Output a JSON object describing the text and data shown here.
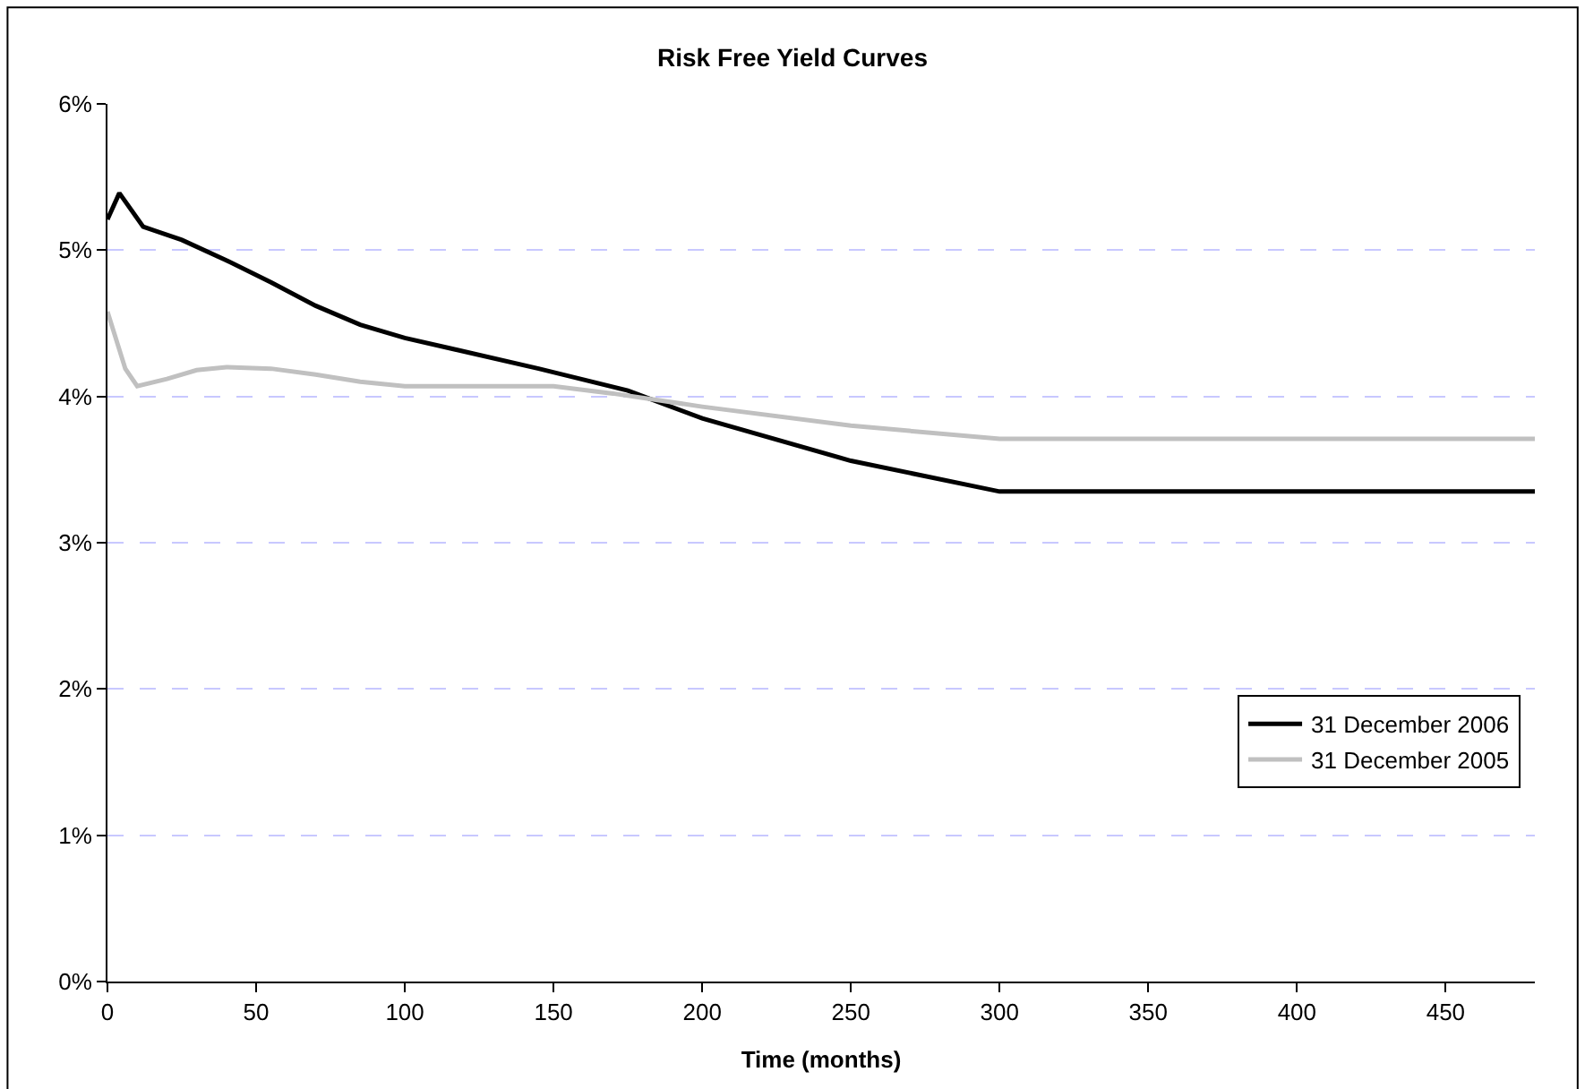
{
  "chart_data": {
    "type": "line",
    "title": "Risk Free Yield Curves",
    "xlabel": "Time (months)",
    "xlim": [
      0,
      480
    ],
    "xticks": [
      0,
      50,
      100,
      150,
      200,
      250,
      300,
      350,
      400,
      450
    ],
    "ylim": [
      0,
      0.06
    ],
    "yticks": [
      {
        "value": 0,
        "label": "0%"
      },
      {
        "value": 0.01,
        "label": "1%"
      },
      {
        "value": 0.02,
        "label": "2%"
      },
      {
        "value": 0.03,
        "label": "3%"
      },
      {
        "value": 0.04,
        "label": "4%"
      },
      {
        "value": 0.05,
        "label": "5%"
      },
      {
        "value": 0.06,
        "label": "6%"
      }
    ],
    "grid": "y",
    "legend": "bottom right",
    "marker": "none",
    "line_style": "solid",
    "series": [
      {
        "name": "31 December 2006",
        "color": "#000000",
        "x": [
          0,
          4,
          12,
          25,
          40,
          55,
          70,
          85,
          100,
          115,
          145,
          175,
          200,
          250,
          300,
          480
        ],
        "values": [
          0.0521,
          0.0539,
          0.0516,
          0.0507,
          0.0493,
          0.0478,
          0.0462,
          0.0449,
          0.044,
          0.0433,
          0.0419,
          0.0404,
          0.0385,
          0.0356,
          0.0335,
          0.0335
        ]
      },
      {
        "name": "31 December 2005",
        "color": "#c0c0c0",
        "x": [
          0,
          6,
          10,
          20,
          30,
          40,
          55,
          70,
          85,
          100,
          150,
          170,
          200,
          250,
          300,
          480
        ],
        "values": [
          0.0458,
          0.0419,
          0.0407,
          0.0412,
          0.0418,
          0.042,
          0.0419,
          0.0415,
          0.041,
          0.0407,
          0.0407,
          0.0402,
          0.0393,
          0.038,
          0.0371,
          0.0371
        ]
      }
    ]
  }
}
